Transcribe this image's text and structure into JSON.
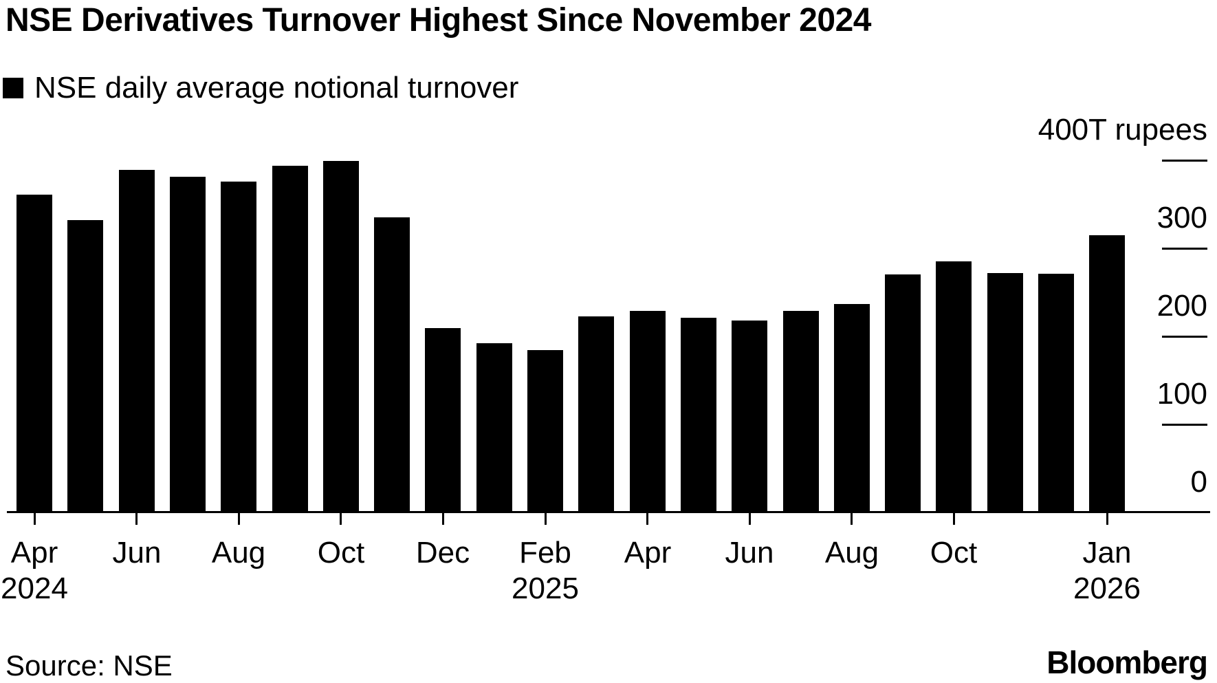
{
  "header": {
    "title": "NSE Derivatives Turnover Highest Since November 2024",
    "legend_label": "NSE daily average notional turnover",
    "legend_swatch_color": "#000000"
  },
  "chart_data": {
    "type": "bar",
    "title": "NSE Derivatives Turnover Highest Since November 2024",
    "legend": [
      "NSE daily average notional turnover"
    ],
    "legend_position": "top-left",
    "unit": "T rupees",
    "categories": [
      "Apr 2024",
      "May 2024",
      "Jun 2024",
      "Jul 2024",
      "Aug 2024",
      "Sep 2024",
      "Oct 2024",
      "Nov 2024",
      "Dec 2024",
      "Jan 2025",
      "Feb 2025",
      "Mar 2025",
      "Apr 2025",
      "May 2025",
      "Jun 2025",
      "Jul 2025",
      "Aug 2025",
      "Sep 2025",
      "Oct 2025",
      "Nov 2025",
      "Dec 2025",
      "Jan 2026"
    ],
    "values": [
      361,
      332,
      389,
      381,
      376,
      394,
      399,
      335,
      209,
      192,
      184,
      223,
      229,
      221,
      218,
      229,
      237,
      270,
      285,
      272,
      271,
      315
    ],
    "ylim": [
      0,
      400
    ],
    "grid": "right-side tick stubs only, no full gridlines",
    "bar_color": "#000000",
    "y_ticks": [
      {
        "value": 400,
        "label": "400T rupees"
      },
      {
        "value": 300,
        "label": "300"
      },
      {
        "value": 200,
        "label": "200"
      },
      {
        "value": 100,
        "label": "100"
      },
      {
        "value": 0,
        "label": "0"
      }
    ],
    "x_tick_labels": [
      {
        "index": 0,
        "line1": "Apr",
        "line2": "2024"
      },
      {
        "index": 2,
        "line1": "Jun",
        "line2": ""
      },
      {
        "index": 4,
        "line1": "Aug",
        "line2": ""
      },
      {
        "index": 6,
        "line1": "Oct",
        "line2": ""
      },
      {
        "index": 8,
        "line1": "Dec",
        "line2": ""
      },
      {
        "index": 10,
        "line1": "Feb",
        "line2": "2025"
      },
      {
        "index": 12,
        "line1": "Apr",
        "line2": ""
      },
      {
        "index": 14,
        "line1": "Jun",
        "line2": ""
      },
      {
        "index": 16,
        "line1": "Aug",
        "line2": ""
      },
      {
        "index": 18,
        "line1": "Oct",
        "line2": ""
      },
      {
        "index": 21,
        "line1": "Jan",
        "line2": "2026"
      }
    ]
  },
  "footer": {
    "source": "Source: NSE",
    "brand": "Bloomberg"
  }
}
